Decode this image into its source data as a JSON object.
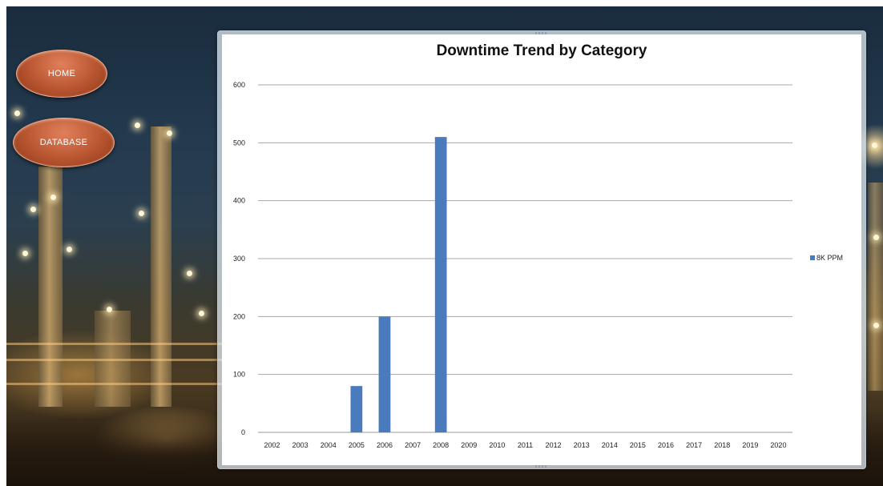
{
  "nav": {
    "home_label": "HOME",
    "database_label": "DATABASE"
  },
  "chart_data": {
    "type": "bar",
    "title": "Downtime Trend by Category",
    "xlabel": "",
    "ylabel": "",
    "ylim": [
      0,
      600
    ],
    "yticks": [
      0,
      100,
      200,
      300,
      400,
      500,
      600
    ],
    "categories": [
      "2002",
      "2003",
      "2004",
      "2005",
      "2006",
      "2007",
      "2008",
      "2009",
      "2010",
      "2011",
      "2012",
      "2013",
      "2014",
      "2015",
      "2016",
      "2017",
      "2018",
      "2019",
      "2020"
    ],
    "series": [
      {
        "name": "8K PPM",
        "color": "#4a7bbd",
        "values": [
          0,
          0,
          0,
          80,
          200,
          0,
          510,
          0,
          0,
          0,
          0,
          0,
          0,
          0,
          0,
          0,
          0,
          0,
          0
        ]
      }
    ],
    "grid": true,
    "legend_position": "right"
  }
}
